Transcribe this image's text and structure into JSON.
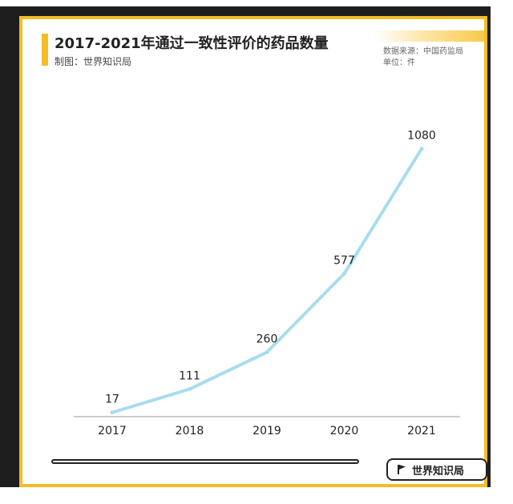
{
  "header": {
    "title": "2017-2021年通过一致性评价的药品数量",
    "maker": "制图：世界知识局",
    "source": "数据来源：中国药监局",
    "unit": "单位：件"
  },
  "footer": {
    "brand": "世界知识局"
  },
  "colors": {
    "accent": "#f5bd25",
    "line": "#a8dcef",
    "frame": "#1e1e1e"
  },
  "chart_data": {
    "type": "line",
    "title": "2017-2021年通过一致性评价的药品数量",
    "categories": [
      "2017",
      "2018",
      "2019",
      "2020",
      "2021"
    ],
    "series": [
      {
        "values": [
          17,
          111,
          260,
          577,
          1080
        ]
      }
    ],
    "xlabel": "",
    "ylabel": "",
    "ylim": [
      0,
      1150
    ],
    "grid": false,
    "legend": "none",
    "data_labels": true
  }
}
